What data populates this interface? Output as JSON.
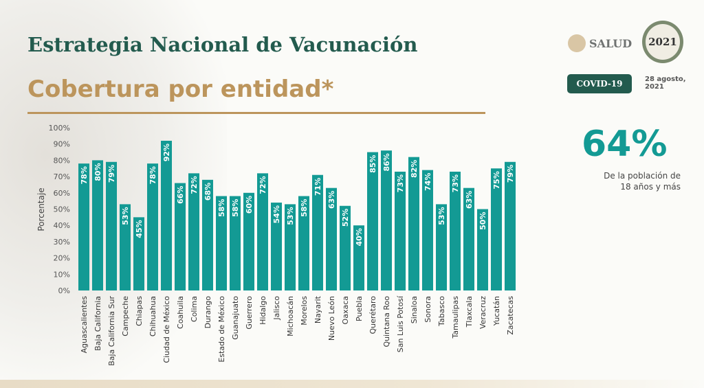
{
  "header": {
    "title": "Estrategia Nacional de Vacunación",
    "subtitle": "Cobertura por entidad*",
    "logo_text": "SALUD",
    "badge": "COVID-19",
    "date": "28 agosto, 2021",
    "logo2021": "2021"
  },
  "summary": {
    "value": "64%",
    "label": "De la población de 18 años y más"
  },
  "colors": {
    "bar": "#139a94",
    "title": "#235b4e",
    "accent": "#bc955c"
  },
  "chart_data": {
    "type": "bar",
    "title": "Cobertura por entidad*",
    "xlabel": "",
    "ylabel": "Porcentaje",
    "ylim": [
      0,
      100
    ],
    "yticks": [
      "0%",
      "10%",
      "20%",
      "30%",
      "40%",
      "50%",
      "60%",
      "70%",
      "80%",
      "90%",
      "100%"
    ],
    "categories": [
      "Aguascalientes",
      "Baja California",
      "Baja California Sur",
      "Campeche",
      "Chiapas",
      "Chihuahua",
      "Ciudad de México",
      "Coahuila",
      "Colima",
      "Durango",
      "Estado de México",
      "Guanajuato",
      "Guerrero",
      "Hidalgo",
      "Jalisco",
      "Michoacán",
      "Morelos",
      "Nayarit",
      "Nuevo León",
      "Oaxaca",
      "Puebla",
      "Querétaro",
      "Quintana Roo",
      "San Luis Potosí",
      "Sinaloa",
      "Sonora",
      "Tabasco",
      "Tamaulipas",
      "Tlaxcala",
      "Veracruz",
      "Yucatán",
      "Zacatecas"
    ],
    "values": [
      78,
      80,
      79,
      53,
      45,
      78,
      92,
      66,
      72,
      68,
      58,
      58,
      60,
      72,
      54,
      53,
      58,
      71,
      63,
      52,
      40,
      85,
      86,
      73,
      82,
      74,
      53,
      73,
      63,
      50,
      75,
      79
    ],
    "labels": [
      "78%",
      "80%",
      "79%",
      "53%",
      "45%",
      "78%",
      "92%",
      "66%",
      "72%",
      "68%",
      "58%",
      "58%",
      "60%",
      "72%",
      "54%",
      "53%",
      "58%",
      "71%",
      "63%",
      "52%",
      "40%",
      "85%",
      "86%",
      "73%",
      "82%",
      "74%",
      "53%",
      "73%",
      "63%",
      "50%",
      "75%",
      "79%"
    ]
  }
}
